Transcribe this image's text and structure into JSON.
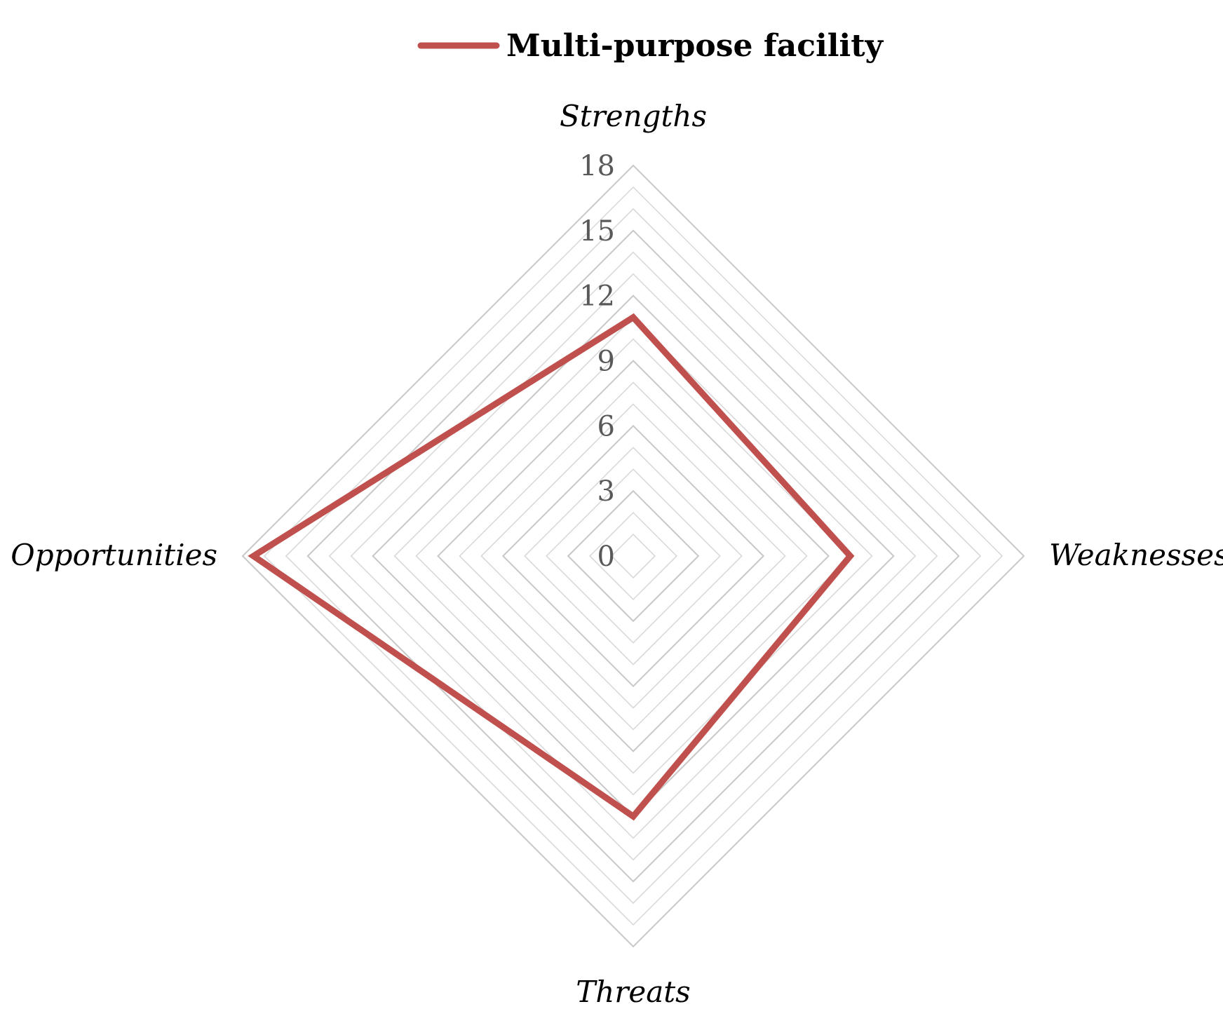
{
  "chart_data": {
    "type": "radar",
    "axes": [
      "Strengths",
      "Weaknesses",
      "Threats",
      "Opportunities"
    ],
    "series": [
      {
        "name": "Multi-purpose facility",
        "values": [
          11,
          10,
          12,
          17.5
        ],
        "color": "#c0504d"
      }
    ],
    "rlim": [
      0,
      18
    ],
    "ticks": [
      "0",
      "3",
      "6",
      "9",
      "12",
      "15",
      "18"
    ],
    "tick_values": [
      0,
      3,
      6,
      9,
      12,
      15,
      18
    ],
    "minor_grid_step": 1,
    "grid": true,
    "legend_position": "top",
    "grid_color": "#d9d9d9",
    "tick_label_color": "#595959"
  }
}
